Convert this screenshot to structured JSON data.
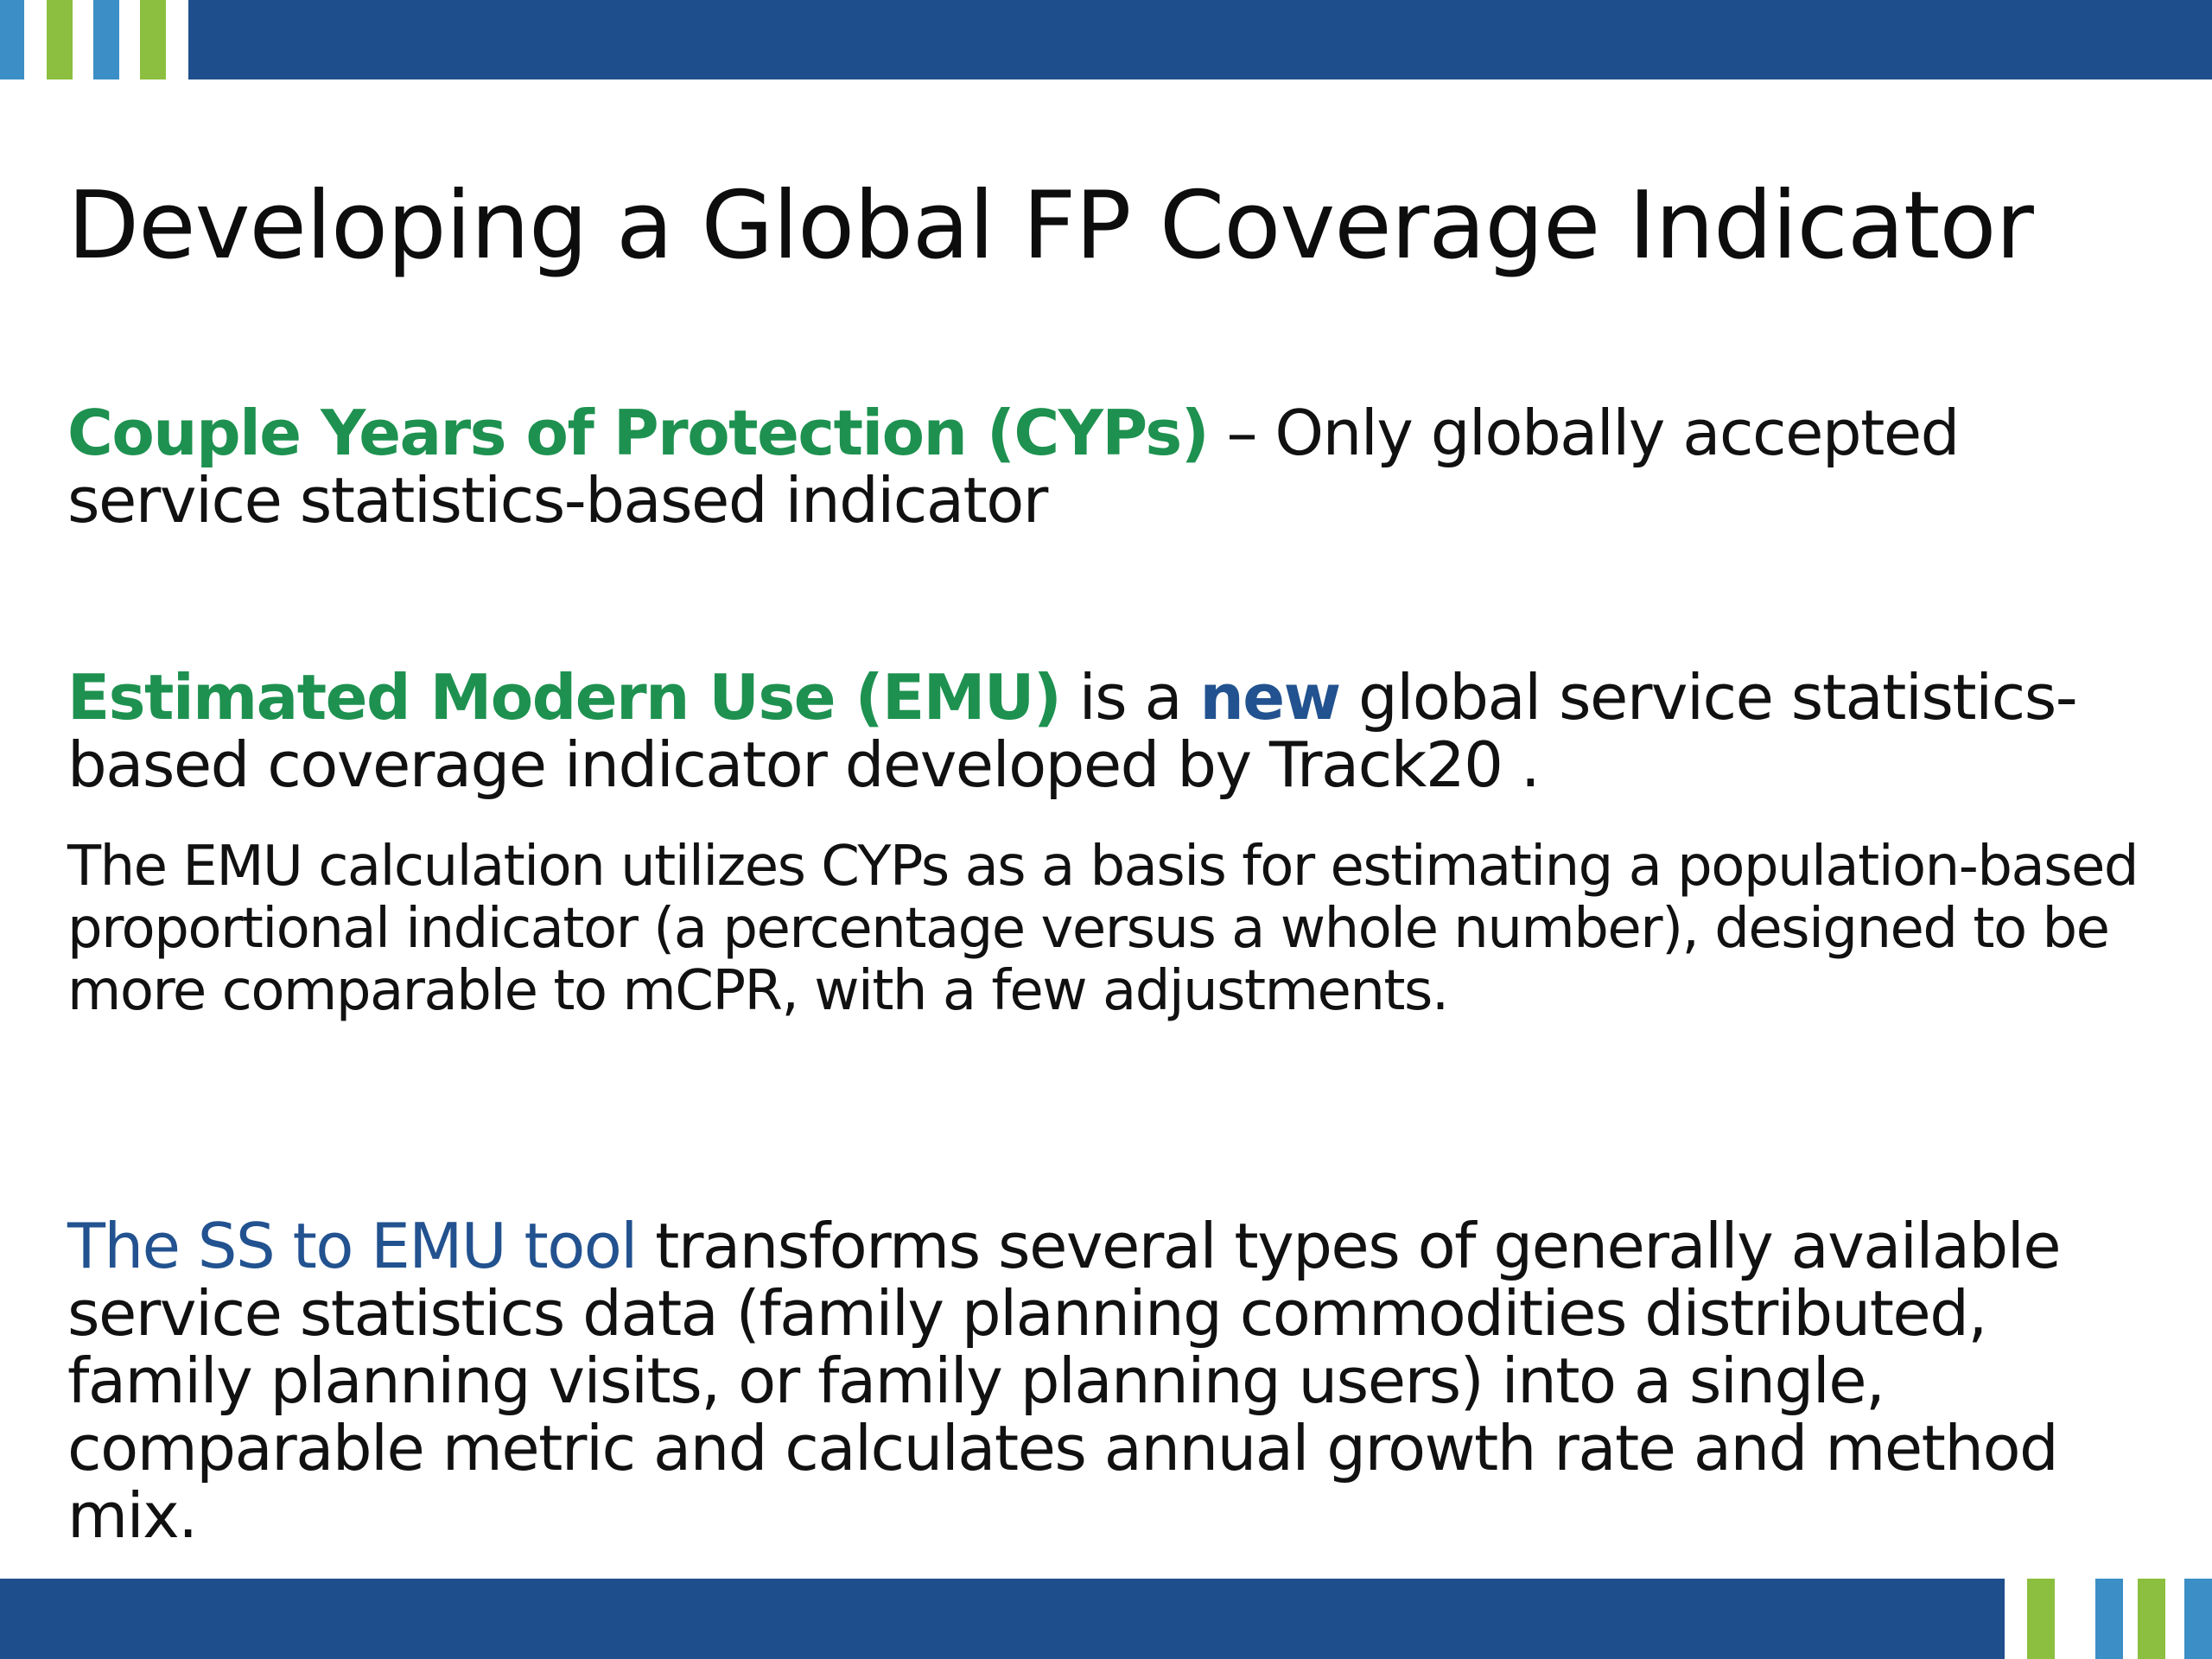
{
  "colors": {
    "dark_blue": "#1f4e8c",
    "light_blue": "#3c8fc6",
    "green": "#8cbf3f",
    "term_green": "#1e9150",
    "accent_blue": "#22528f",
    "text": "#111111"
  },
  "slide": {
    "title": "Developing a Global FP Coverage Indicator",
    "cyp": {
      "term": "Couple Years of Protection (CYPs)",
      "text": " – Only globally accepted service statistics-based indicator"
    },
    "emu": {
      "term": "Estimated Modern Use (EMU)",
      "text_1": " is a ",
      "highlight": "new",
      "text_2": " global service statistics-based coverage indicator developed by Track20 ."
    },
    "emu_calculation": "The EMU calculation utilizes CYPs as a basis for estimating a population-based proportional indicator (a percentage versus a whole number), designed to be more comparable to mCPR, with a few adjustments.",
    "tool": {
      "name": "The SS to EMU tool",
      "text": " transforms several types of generally available service statistics data (family planning commodities distributed, family planning visits, or family planning users) into a single, comparable metric and calculates annual growth rate and method mix."
    }
  }
}
